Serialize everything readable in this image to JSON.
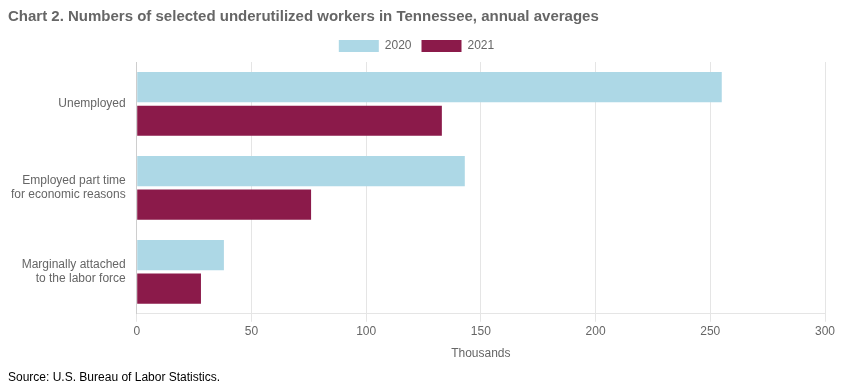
{
  "chart_data": {
    "type": "bar",
    "orientation": "horizontal",
    "title": "Chart 2. Numbers of selected underutilized workers in Tennessee, annual averages",
    "categories": [
      "Marginally attached\nto the labor force",
      "Employed part time\nfor economic reasons",
      "Unemployed"
    ],
    "series": [
      {
        "name": "2020",
        "color": "#add8e6",
        "values": [
          38,
          143,
          255
        ]
      },
      {
        "name": "2021",
        "color": "#8b1a4a",
        "values": [
          28,
          76,
          133
        ]
      }
    ],
    "xlim": [
      0,
      300
    ],
    "xticks": [
      0,
      50,
      100,
      150,
      200,
      250,
      300
    ],
    "xlabel": "Thousands",
    "grid": true,
    "legend": "top",
    "annotations": [
      "Source: U.S. Bureau of Labor Statistics."
    ]
  }
}
